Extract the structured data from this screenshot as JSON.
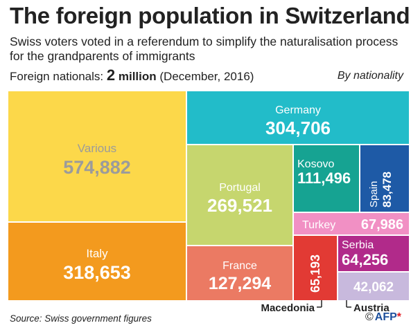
{
  "header": {
    "title": "The foreign population in Switzerland",
    "subtitle": "Swiss voters voted in a referendum to simplify the naturalisation process for the grandparents of immigrants",
    "summary_prefix": "Foreign nationals:",
    "summary_value": "2",
    "summary_unit": "million",
    "summary_date": "(December, 2016)",
    "by_label": "By nationality"
  },
  "footer": {
    "source": "Source: Swiss government figures",
    "logo_copy": "©",
    "logo_text": "AFP",
    "logo_star": "*"
  },
  "chart_data": {
    "type": "treemap",
    "total_label": "2 million",
    "items": [
      {
        "name": "Various",
        "value": 574882,
        "label": "574,882",
        "color": "#fcd84a",
        "text_color": "#9b9b9b"
      },
      {
        "name": "Italy",
        "value": 318653,
        "label": "318,653",
        "color": "#f39a1e",
        "text_color": "#ffffff"
      },
      {
        "name": "Germany",
        "value": 304706,
        "label": "304,706",
        "color": "#22bcc9",
        "text_color": "#ffffff"
      },
      {
        "name": "Portugal",
        "value": 269521,
        "label": "269,521",
        "color": "#c6d66e",
        "text_color": "#ffffff"
      },
      {
        "name": "Kosovo",
        "value": 111496,
        "label": "111,496",
        "color": "#16a392",
        "text_color": "#ffffff"
      },
      {
        "name": "Spain",
        "value": 83478,
        "label": "83,478",
        "color": "#1e5aa6",
        "text_color": "#ffffff"
      },
      {
        "name": "Turkey",
        "value": 67986,
        "label": "67,986",
        "color": "#f190c4",
        "text_color": "#ffffff"
      },
      {
        "name": "France",
        "value": 127294,
        "label": "127,294",
        "color": "#eb7a63",
        "text_color": "#ffffff"
      },
      {
        "name": "Macedonia",
        "value": 65193,
        "label": "65,193",
        "color": "#e23a34",
        "text_color": "#ffffff"
      },
      {
        "name": "Serbia",
        "value": 64256,
        "label": "64,256",
        "color": "#b12a8a",
        "text_color": "#ffffff"
      },
      {
        "name": "Austria",
        "value": 42062,
        "label": "42,062",
        "color": "#c8b9dd",
        "text_color": "#ffffff"
      }
    ]
  }
}
